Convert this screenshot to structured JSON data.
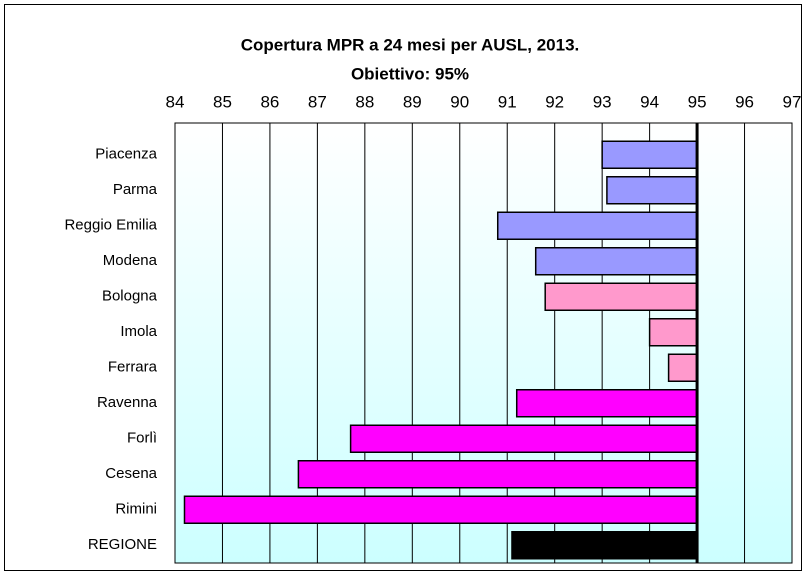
{
  "chart_data": {
    "type": "bar",
    "orientation": "horizontal",
    "title": "Copertura MPR a 24 mesi per AUSL, 2013.",
    "subtitle": "Obiettivo: 95%",
    "base": 95,
    "categories": [
      "Piacenza",
      "Parma",
      "Reggio Emilia",
      "Modena",
      "Bologna",
      "Imola",
      "Ferrara",
      "Ravenna",
      "Forlì",
      "Cesena",
      "Rimini",
      "REGIONE"
    ],
    "values": [
      93.0,
      93.1,
      90.8,
      91.6,
      91.8,
      94.0,
      94.4,
      91.2,
      87.7,
      86.6,
      84.2,
      91.1
    ],
    "colors": [
      "#9999ff",
      "#9999ff",
      "#9999ff",
      "#9999ff",
      "#ff99cc",
      "#ff99cc",
      "#ff99cc",
      "#ff00ff",
      "#ff00ff",
      "#ff00ff",
      "#ff00ff",
      "#000000"
    ],
    "xlim": [
      84,
      97
    ],
    "xticks": [
      84,
      85,
      86,
      87,
      88,
      89,
      90,
      91,
      92,
      93,
      94,
      95,
      96,
      97
    ],
    "grid": true
  }
}
